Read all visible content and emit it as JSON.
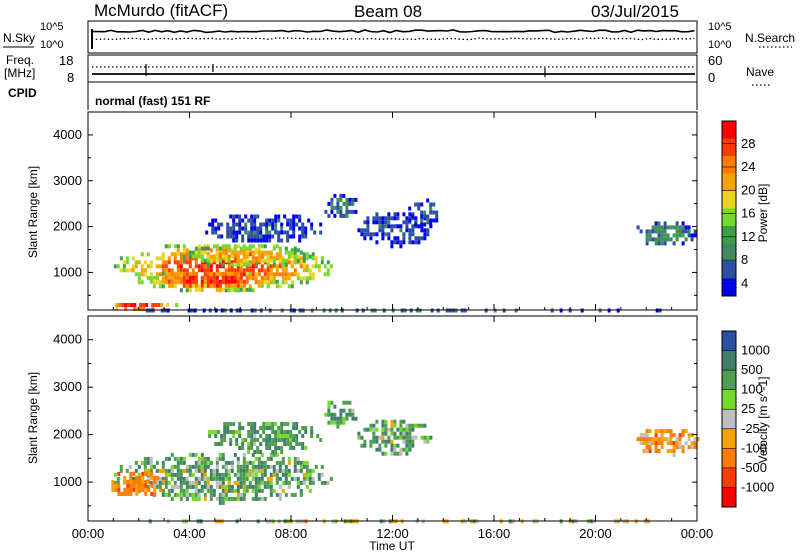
{
  "header": {
    "station": "McMurdo (fitACF)",
    "beam": "Beam 08",
    "date": "03/Jul/2015"
  },
  "panels": {
    "nsky_label": "N.Sky",
    "nsearch_label": "N.Search",
    "noise_top_tick_left": "10^5",
    "noise_bot_tick_left": "10^0",
    "noise_top_tick_right": "10^5",
    "noise_bot_tick_right": "10^0",
    "freq_label_1": "Freq.",
    "freq_label_2": "[MHz]",
    "freq_top_tick": "18",
    "freq_bot_tick": "8",
    "nave_top_tick": "60",
    "nave_bot_tick": "0",
    "nave_label": "Nave",
    "cpid_label": "CPID",
    "cpid_text": "normal (fast) 151 RF"
  },
  "axes": {
    "x_label": "Time UT",
    "y_label": "Slant Range [km]"
  },
  "colorbars": {
    "power": {
      "label": "Power [dB]",
      "ticks": [
        "28",
        "24",
        "20",
        "16",
        "12",
        "8",
        "4"
      ],
      "colors": [
        "#ff0000",
        "#ff3c00",
        "#ff7c00",
        "#f4a300",
        "#ecd51e",
        "#73d92a",
        "#3f9f48",
        "#3f8a61",
        "#2b4fa1",
        "#0000f0"
      ]
    },
    "velocity": {
      "label": "Velocity [m s^-1]",
      "ticks": [
        "1000",
        "500",
        "100",
        "25",
        "-25",
        "-100",
        "-500",
        "-1000"
      ],
      "colors": [
        "#2b4fa1",
        "#3f7f6b",
        "#4f9d4f",
        "#73d92a",
        "#bebebe",
        "#f4a300",
        "#ff7c00",
        "#ff3c00",
        "#ff0000"
      ]
    }
  },
  "chart_data": [
    {
      "type": "heatmap",
      "name": "Power [dB]",
      "x_ticks": [
        "00:00",
        "04:00",
        "08:00",
        "12:00",
        "16:00",
        "20:00",
        "00:00"
      ],
      "xlim_hours": [
        0,
        24
      ],
      "y_ticks": [
        1000,
        2000,
        3000,
        4000
      ],
      "ylim_km": [
        180,
        4500
      ],
      "clim": [
        0,
        30
      ],
      "clusters": [
        {
          "t": [
            0.9,
            9.6
          ],
          "r": [
            600,
            1700
          ],
          "peak": 28
        },
        {
          "t": [
            2.2,
            7.5
          ],
          "r": [
            620,
            1100
          ],
          "peak": 30
        },
        {
          "t": [
            3.5,
            8.8
          ],
          "r": [
            1150,
            1650
          ],
          "peak": 22
        },
        {
          "t": [
            4.5,
            9.2
          ],
          "r": [
            1650,
            2350
          ],
          "peak": 6
        },
        {
          "t": [
            9.2,
            10.6
          ],
          "r": [
            2200,
            2800
          ],
          "peak": 8
        },
        {
          "t": [
            10.5,
            13.5
          ],
          "r": [
            1600,
            2400
          ],
          "peak": 6
        },
        {
          "t": [
            12.5,
            13.8
          ],
          "r": [
            2000,
            2700
          ],
          "peak": 6
        },
        {
          "t": [
            21.5,
            24
          ],
          "r": [
            1600,
            2200
          ],
          "peak": 10
        },
        {
          "t": [
            0.6,
            3.5
          ],
          "r": [
            200,
            420
          ],
          "peak": 30
        },
        {
          "t": [
            0.5,
            24
          ],
          "r": [
            180,
            300
          ],
          "peak": 8
        }
      ]
    },
    {
      "type": "heatmap",
      "name": "Velocity [m s^-1]",
      "x_ticks": [
        "00:00",
        "04:00",
        "08:00",
        "12:00",
        "16:00",
        "20:00",
        "00:00"
      ],
      "xlim_hours": [
        0,
        24
      ],
      "y_ticks": [
        1000,
        2000,
        3000,
        4000
      ],
      "ylim_km": [
        180,
        4500
      ],
      "clim": [
        -1000,
        1000
      ],
      "clusters": [
        {
          "t": [
            0.9,
            9.6
          ],
          "r": [
            600,
            1700
          ],
          "v": 80
        },
        {
          "t": [
            0.8,
            3.0
          ],
          "r": [
            700,
            1300
          ],
          "v": -120
        },
        {
          "t": [
            4.5,
            9.2
          ],
          "r": [
            1650,
            2350
          ],
          "v": 120
        },
        {
          "t": [
            9.2,
            10.6
          ],
          "r": [
            2200,
            2800
          ],
          "v": 100
        },
        {
          "t": [
            10.5,
            13.5
          ],
          "r": [
            1600,
            2400
          ],
          "v": 100
        },
        {
          "t": [
            21.5,
            24
          ],
          "r": [
            1600,
            2200
          ],
          "v": -80
        },
        {
          "t": [
            0.5,
            24
          ],
          "r": [
            180,
            300
          ],
          "v": 20
        }
      ]
    }
  ]
}
